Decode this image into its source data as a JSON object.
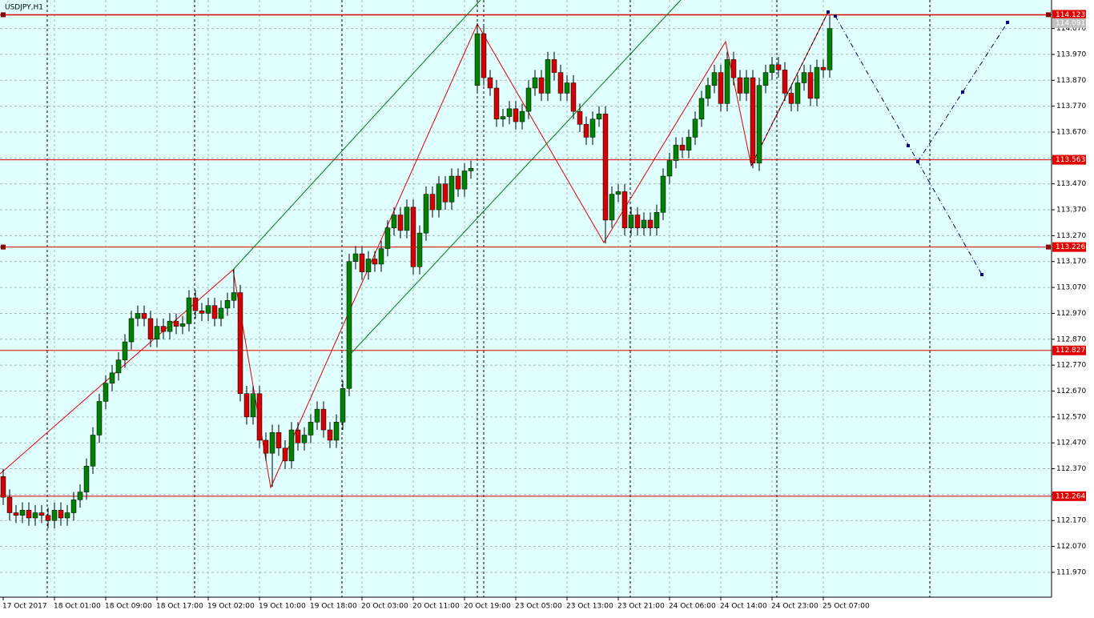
{
  "chart_data": {
    "type": "candlestick",
    "title": "USDJPY,H1",
    "categories": [
      "17 Oct 2017",
      null,
      null,
      null,
      null,
      null,
      null,
      null,
      "18 Oct 01:00",
      null,
      null,
      null,
      null,
      null,
      null,
      null,
      "18 Oct 09:00",
      null,
      null,
      null,
      null,
      null,
      null,
      null,
      "18 Oct 17:00",
      null,
      null,
      null,
      null,
      null,
      null,
      null,
      "19 Oct 02:00",
      null,
      null,
      null,
      null,
      null,
      null,
      null,
      "19 Oct 10:00",
      null,
      null,
      null,
      null,
      null,
      null,
      null,
      "19 Oct 18:00",
      null,
      null,
      null,
      null,
      null,
      null,
      null,
      "20 Oct 03:00",
      null,
      null,
      null,
      null,
      null,
      null,
      null,
      "20 Oct 11:00",
      null,
      null,
      null,
      null,
      null,
      null,
      null,
      "20 Oct 19:00",
      null,
      null,
      null,
      null,
      null,
      null,
      null,
      "23 Oct 05:00",
      null,
      null,
      null,
      null,
      null,
      null,
      null,
      "23 Oct 13:00",
      null,
      null,
      null,
      null,
      null,
      null,
      null,
      "23 Oct 21:00",
      null,
      null,
      null,
      null,
      null,
      null,
      null,
      "24 Oct 06:00",
      null,
      null,
      null,
      null,
      null,
      null,
      null,
      "24 Oct 14:00",
      null,
      null,
      null,
      null,
      null,
      null,
      null,
      "24 Oct 23:00",
      null,
      null,
      null,
      null,
      null,
      null,
      null,
      "25 Oct 07:00",
      null
    ],
    "open": [
      112.34,
      112.26,
      112.2,
      112.19,
      112.21,
      112.18,
      112.2,
      112.19,
      112.17,
      112.21,
      112.18,
      112.2,
      112.25,
      112.28,
      112.38,
      112.5,
      112.63,
      112.7,
      112.74,
      112.79,
      112.86,
      112.95,
      112.97,
      112.95,
      112.87,
      112.92,
      112.9,
      112.94,
      112.92,
      112.93,
      113.03,
      112.98,
      112.97,
      113.0,
      112.95,
      112.99,
      113.02,
      113.05,
      112.66,
      112.57,
      112.66,
      112.48,
      112.43,
      112.51,
      112.45,
      112.4,
      112.52,
      112.47,
      112.5,
      112.55,
      112.6,
      112.52,
      112.48,
      112.55,
      112.68,
      113.17,
      113.2,
      113.13,
      113.18,
      113.16,
      113.22,
      113.3,
      113.35,
      113.29,
      113.38,
      113.15,
      113.28,
      113.43,
      113.37,
      113.47,
      113.4,
      113.5,
      113.45,
      113.52,
      113.85,
      114.05,
      113.88,
      113.84,
      113.72,
      113.73,
      113.76,
      113.71,
      113.75,
      113.84,
      113.88,
      113.82,
      113.95,
      113.9,
      113.82,
      113.86,
      113.75,
      113.7,
      113.65,
      113.72,
      113.74,
      113.33,
      113.43,
      113.44,
      113.3,
      113.35,
      113.3,
      113.33,
      113.3,
      113.36,
      113.5,
      113.56,
      113.62,
      113.6,
      113.65,
      113.72,
      113.8,
      113.85,
      113.9,
      113.78,
      113.95,
      113.88,
      113.82,
      113.88,
      113.55,
      113.85,
      113.9,
      113.93,
      113.91,
      113.82,
      113.78,
      113.86,
      113.9,
      113.8,
      113.92,
      113.91
    ],
    "high": [
      112.37,
      112.29,
      112.23,
      112.24,
      112.24,
      112.23,
      112.23,
      112.22,
      112.24,
      112.24,
      112.23,
      112.28,
      112.31,
      112.41,
      112.53,
      112.66,
      112.73,
      112.77,
      112.82,
      112.89,
      112.98,
      113.0,
      113.0,
      112.98,
      112.95,
      112.95,
      112.97,
      112.97,
      112.96,
      113.06,
      113.06,
      113.01,
      113.03,
      113.03,
      113.02,
      113.05,
      113.14,
      113.08,
      112.69,
      112.69,
      112.69,
      112.51,
      112.54,
      112.54,
      112.48,
      112.55,
      112.55,
      112.53,
      112.58,
      112.63,
      112.63,
      112.55,
      112.58,
      112.71,
      113.2,
      113.23,
      113.23,
      113.21,
      113.21,
      113.25,
      113.33,
      113.38,
      113.38,
      113.41,
      113.41,
      113.31,
      113.46,
      113.46,
      113.5,
      113.5,
      113.53,
      113.53,
      113.55,
      113.56,
      114.09,
      114.08,
      113.91,
      113.87,
      113.76,
      113.79,
      113.79,
      113.78,
      113.87,
      113.91,
      113.91,
      113.98,
      113.98,
      113.93,
      113.89,
      113.89,
      113.78,
      113.73,
      113.75,
      113.77,
      113.77,
      113.46,
      113.47,
      113.47,
      113.38,
      113.38,
      113.36,
      113.36,
      113.39,
      113.53,
      113.59,
      113.65,
      113.65,
      113.68,
      113.75,
      113.83,
      113.88,
      113.93,
      113.93,
      113.98,
      113.98,
      113.91,
      113.91,
      113.91,
      113.88,
      113.93,
      113.96,
      113.96,
      113.94,
      113.85,
      113.89,
      113.93,
      113.93,
      113.95,
      113.95,
      114.12
    ],
    "low": [
      112.23,
      112.17,
      112.16,
      112.16,
      112.15,
      112.15,
      112.16,
      112.14,
      112.14,
      112.15,
      112.15,
      112.17,
      112.22,
      112.25,
      112.35,
      112.47,
      112.6,
      112.67,
      112.71,
      112.76,
      112.83,
      112.92,
      112.92,
      112.84,
      112.84,
      112.87,
      112.87,
      112.89,
      112.89,
      112.9,
      112.95,
      112.94,
      112.94,
      112.92,
      112.92,
      112.96,
      112.99,
      112.63,
      112.54,
      112.54,
      112.45,
      112.4,
      112.3,
      112.42,
      112.37,
      112.37,
      112.44,
      112.44,
      112.47,
      112.52,
      112.49,
      112.45,
      112.45,
      112.52,
      112.65,
      113.14,
      113.1,
      113.1,
      113.13,
      113.13,
      113.19,
      113.27,
      113.26,
      113.26,
      113.12,
      113.12,
      113.25,
      113.34,
      113.34,
      113.37,
      113.37,
      113.42,
      113.42,
      113.49,
      113.82,
      113.85,
      113.81,
      113.69,
      113.69,
      113.7,
      113.68,
      113.68,
      113.72,
      113.81,
      113.79,
      113.79,
      113.87,
      113.79,
      113.79,
      113.72,
      113.67,
      113.62,
      113.62,
      113.69,
      113.24,
      113.3,
      113.4,
      113.27,
      113.27,
      113.27,
      113.27,
      113.27,
      113.27,
      113.33,
      113.47,
      113.53,
      113.57,
      113.57,
      113.62,
      113.69,
      113.77,
      113.82,
      113.75,
      113.75,
      113.85,
      113.79,
      113.79,
      113.53,
      113.52,
      113.82,
      113.87,
      113.88,
      113.79,
      113.75,
      113.75,
      113.83,
      113.77,
      113.77,
      113.88,
      113.88
    ],
    "close": [
      112.26,
      112.2,
      112.19,
      112.21,
      112.18,
      112.2,
      112.19,
      112.17,
      112.21,
      112.18,
      112.2,
      112.25,
      112.28,
      112.38,
      112.5,
      112.63,
      112.7,
      112.74,
      112.79,
      112.86,
      112.95,
      112.97,
      112.95,
      112.87,
      112.92,
      112.9,
      112.94,
      112.92,
      112.93,
      113.03,
      112.98,
      112.97,
      113.0,
      112.95,
      112.99,
      113.02,
      113.05,
      112.66,
      112.57,
      112.66,
      112.48,
      112.43,
      112.51,
      112.45,
      112.4,
      112.52,
      112.47,
      112.5,
      112.55,
      112.6,
      112.52,
      112.48,
      112.55,
      112.68,
      113.17,
      113.2,
      113.13,
      113.18,
      113.16,
      113.22,
      113.3,
      113.35,
      113.29,
      113.38,
      113.15,
      113.28,
      113.43,
      113.37,
      113.47,
      113.4,
      113.5,
      113.45,
      113.52,
      113.53,
      114.05,
      113.88,
      113.84,
      113.72,
      113.73,
      113.76,
      113.71,
      113.75,
      113.84,
      113.88,
      113.82,
      113.95,
      113.9,
      113.82,
      113.86,
      113.75,
      113.7,
      113.65,
      113.72,
      113.74,
      113.33,
      113.43,
      113.44,
      113.3,
      113.35,
      113.3,
      113.33,
      113.3,
      113.36,
      113.5,
      113.56,
      113.62,
      113.6,
      113.65,
      113.72,
      113.8,
      113.85,
      113.9,
      113.78,
      113.95,
      113.88,
      113.82,
      113.88,
      113.55,
      113.85,
      113.9,
      113.93,
      113.91,
      113.82,
      113.78,
      113.86,
      113.9,
      113.8,
      113.92,
      113.91,
      114.07
    ],
    "bull_color": "#008000",
    "bear_color": "#d40000",
    "ylim": [
      111.874,
      114.18
    ],
    "yticks": [
      {
        "value": 111.97,
        "label": "111.970"
      },
      {
        "value": 112.07,
        "label": "112.070"
      },
      {
        "value": 112.17,
        "label": "112.170"
      },
      {
        "value": 112.27,
        "label": "112.270"
      },
      {
        "value": 112.37,
        "label": "112.370"
      },
      {
        "value": 112.47,
        "label": "112.470"
      },
      {
        "value": 112.57,
        "label": "112.570"
      },
      {
        "value": 112.67,
        "label": "112.670"
      },
      {
        "value": 112.77,
        "label": "112.770"
      },
      {
        "value": 112.87,
        "label": "112.870"
      },
      {
        "value": 112.97,
        "label": "112.970"
      },
      {
        "value": 113.07,
        "label": "113.070"
      },
      {
        "value": 113.17,
        "label": "113.170"
      },
      {
        "value": 113.27,
        "label": "113.270"
      },
      {
        "value": 113.37,
        "label": "113.370"
      },
      {
        "value": 113.47,
        "label": "113.470"
      },
      {
        "value": 113.57,
        "label": "113.570"
      },
      {
        "value": 113.67,
        "label": "113.670"
      },
      {
        "value": 113.77,
        "label": "113.770"
      },
      {
        "value": 113.87,
        "label": "113.870"
      },
      {
        "value": 113.97,
        "label": "113.970"
      },
      {
        "value": 114.07,
        "label": "114.070"
      }
    ],
    "levels": [
      {
        "value": 114.123,
        "label": "114.123"
      },
      {
        "value": 113.563,
        "label": "113.563"
      },
      {
        "value": 113.226,
        "label": "113.226"
      },
      {
        "value": 112.827,
        "label": "112.827"
      },
      {
        "value": 112.264,
        "label": "112.264"
      }
    ],
    "level_color": "#e00000",
    "price_label": {
      "value": 114.091,
      "label": "114.091"
    },
    "grid": true
  }
}
